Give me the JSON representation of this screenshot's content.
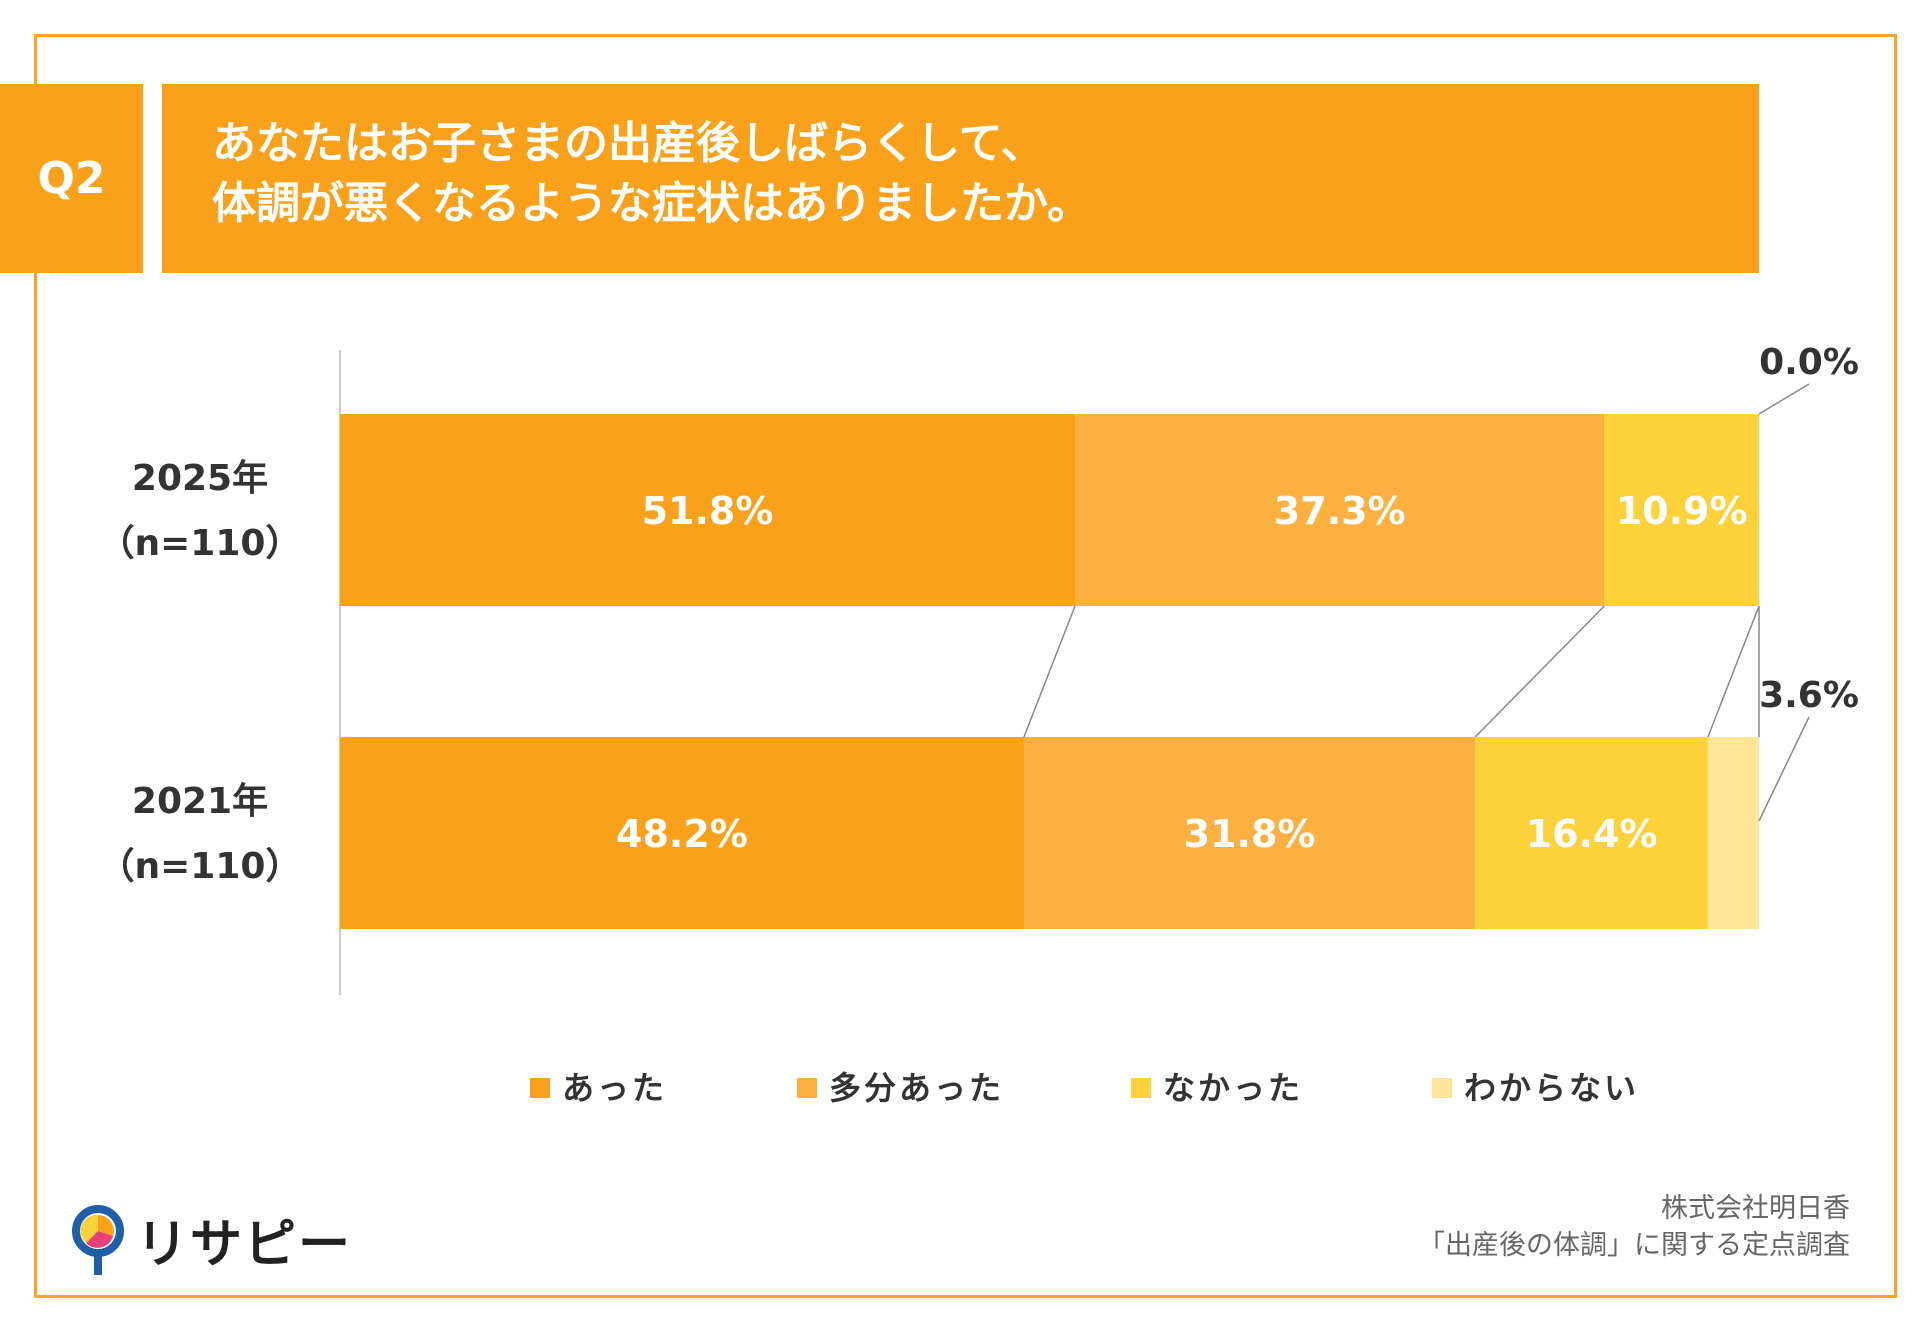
{
  "question": {
    "label": "Q2",
    "title_line1": "あなたはお子さまの出産後しばらくして、",
    "title_line2": "体調が悪くなるような症状はありましたか。"
  },
  "colors": {
    "frame": "#F5A623",
    "header": "#F9A11B",
    "series": [
      "#F9A11B",
      "#FBB040",
      "#FDD13A",
      "#FDE598"
    ]
  },
  "chart_data": {
    "type": "bar",
    "orientation": "horizontal-stacked-100",
    "categories": [
      {
        "year": "2025年",
        "n": "（n=110）"
      },
      {
        "year": "2021年",
        "n": "（n=110）"
      }
    ],
    "series": [
      {
        "name": "あった",
        "values": [
          51.8,
          48.2
        ],
        "labels": [
          "51.8%",
          "48.2%"
        ]
      },
      {
        "name": "多分あった",
        "values": [
          37.3,
          31.8
        ],
        "labels": [
          "37.3%",
          "31.8%"
        ]
      },
      {
        "name": "なかった",
        "values": [
          10.9,
          16.4
        ],
        "labels": [
          "10.9%",
          "16.4%"
        ]
      },
      {
        "name": "わからない",
        "values": [
          0.0,
          3.6
        ],
        "labels": [
          "0.0%",
          "3.6%"
        ]
      }
    ],
    "xlim": [
      0,
      100
    ],
    "legend_position": "bottom"
  },
  "footer": {
    "company": "株式会社明日香",
    "survey": "「出産後の体調」に関する定点調査"
  },
  "logo": {
    "text": "リサピー",
    "icon": "pin-logo-icon"
  }
}
